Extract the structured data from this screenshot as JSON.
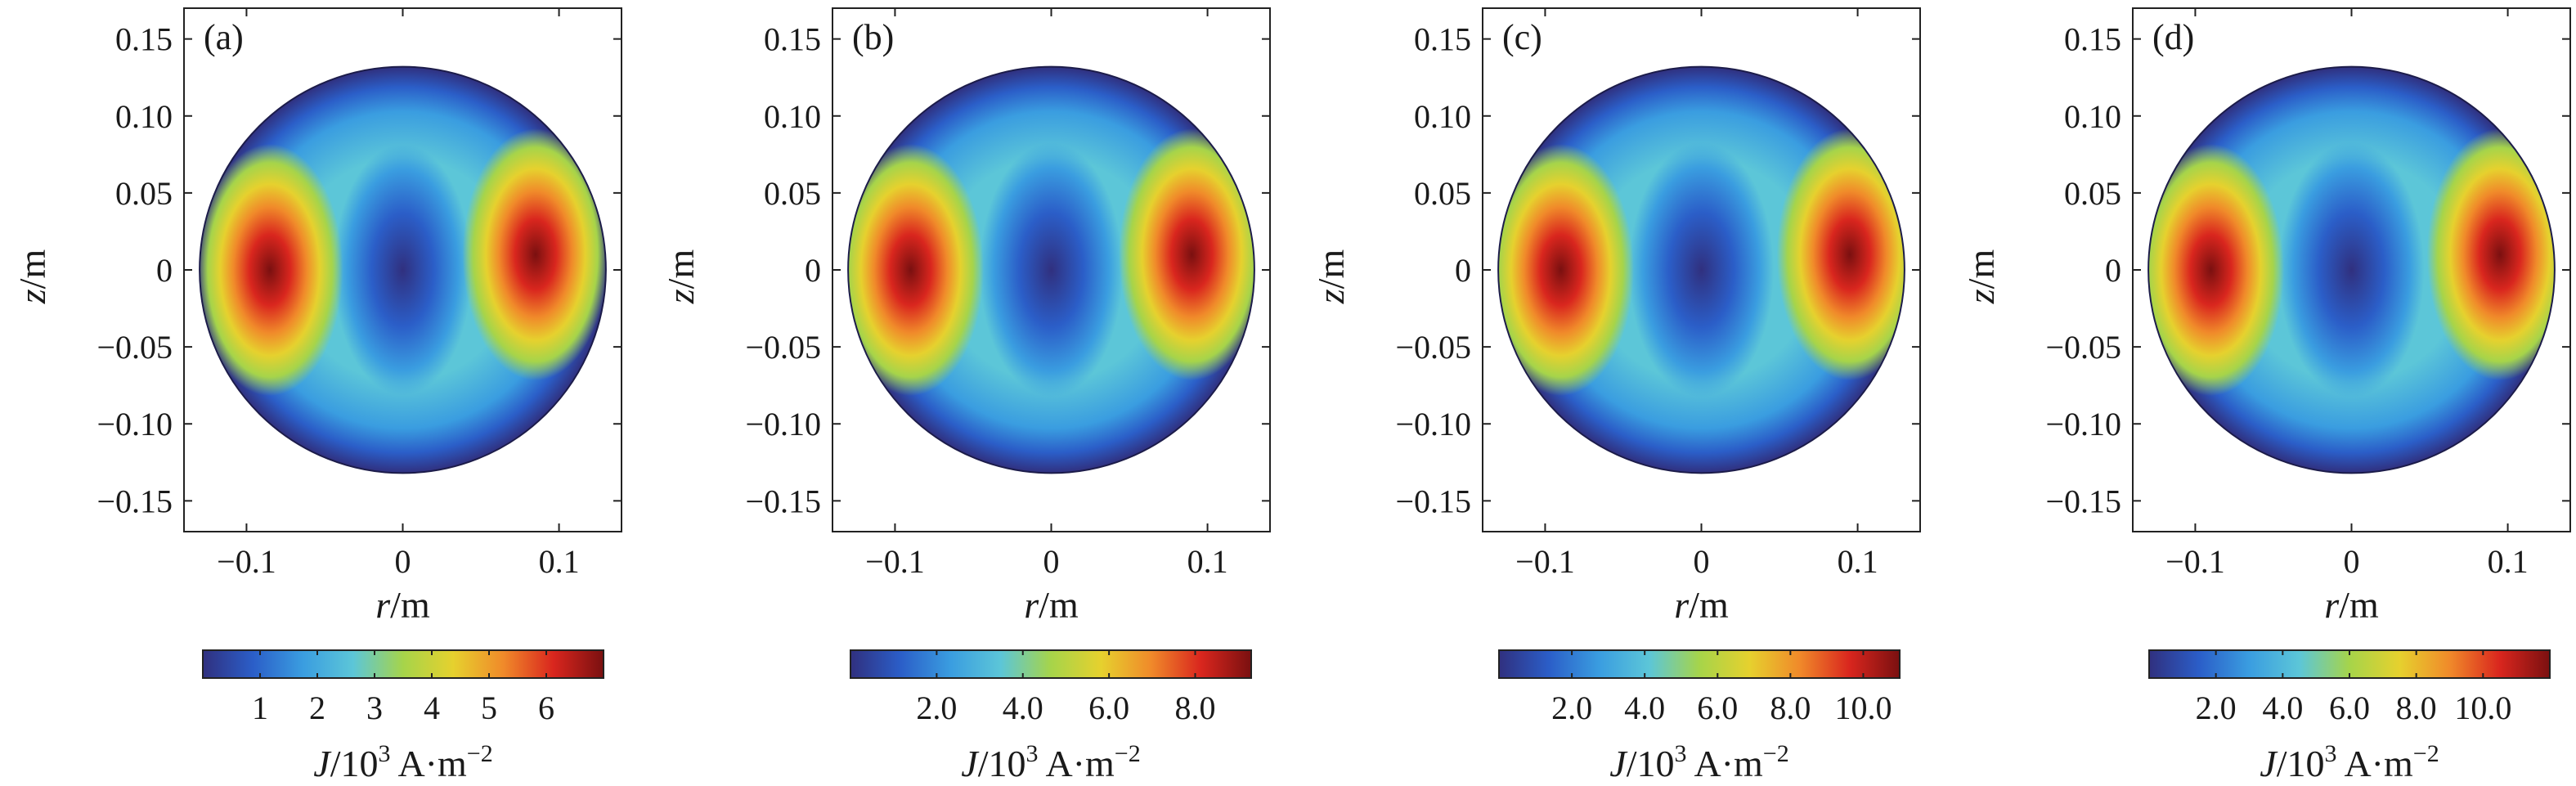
{
  "chart_data": [
    {
      "type": "heatmap",
      "panel_label": "(a)",
      "xlabel": {
        "var": "r",
        "unit": "/m"
      },
      "ylabel": {
        "var": "z",
        "unit": "/m"
      },
      "xlim": [
        -0.14,
        0.14
      ],
      "ylim": [
        -0.17,
        0.17
      ],
      "xticks": [
        -0.1,
        0,
        0.1
      ],
      "xtick_labels": [
        "−0.1",
        "0",
        "0.1"
      ],
      "yticks": [
        0.15,
        0.1,
        0.05,
        0,
        -0.05,
        -0.1,
        -0.15
      ],
      "ytick_labels": [
        "0.15",
        "0.10",
        "0.05",
        "0",
        "−0.05",
        "−0.10",
        "−0.15"
      ],
      "domain": {
        "shape": "circle",
        "center": [
          0,
          0
        ],
        "radius": 0.13
      },
      "hotspots": [
        {
          "r": -0.085,
          "z": 0.0,
          "value": 6.5
        },
        {
          "r": 0.085,
          "z": 0.01,
          "value": 6.5
        }
      ],
      "min_region": {
        "r": 0.0,
        "z": 0.0,
        "value": 1.0
      },
      "colorbar": {
        "range": [
          0,
          7.0
        ],
        "ticks": [
          1,
          2,
          3,
          4,
          5,
          6
        ],
        "tick_labels": [
          "1",
          "2",
          "3",
          "4",
          "5",
          "6"
        ],
        "label": {
          "var": "J",
          "unit": "/10",
          "exp": "3",
          "rest": " A·m",
          "exp2": "−2"
        }
      }
    },
    {
      "type": "heatmap",
      "panel_label": "(b)",
      "xlabel": {
        "var": "r",
        "unit": "/m"
      },
      "ylabel": {
        "var": "z",
        "unit": "/m"
      },
      "xlim": [
        -0.14,
        0.14
      ],
      "ylim": [
        -0.17,
        0.17
      ],
      "xticks": [
        -0.1,
        0,
        0.1
      ],
      "xtick_labels": [
        "−0.1",
        "0",
        "0.1"
      ],
      "yticks": [
        0.15,
        0.1,
        0.05,
        0,
        -0.05,
        -0.1,
        -0.15
      ],
      "ytick_labels": [
        "0.15",
        "0.10",
        "0.05",
        "0",
        "−0.05",
        "−0.10",
        "−0.15"
      ],
      "domain": {
        "shape": "circle",
        "center": [
          0,
          0
        ],
        "radius": 0.13
      },
      "hotspots": [
        {
          "r": -0.09,
          "z": 0.0,
          "value": 8.5
        },
        {
          "r": 0.09,
          "z": 0.01,
          "value": 8.0
        }
      ],
      "min_region": {
        "r": 0.0,
        "z": 0.0,
        "value": 0.5
      },
      "colorbar": {
        "range": [
          0,
          9.3
        ],
        "ticks": [
          2.0,
          4.0,
          6.0,
          8.0
        ],
        "tick_labels": [
          "2.0",
          "4.0",
          "6.0",
          "8.0"
        ],
        "label": {
          "var": "J",
          "unit": "/10",
          "exp": "3",
          "rest": " A·m",
          "exp2": "−2"
        }
      }
    },
    {
      "type": "heatmap",
      "panel_label": "(c)",
      "xlabel": {
        "var": "r",
        "unit": "/m"
      },
      "ylabel": {
        "var": "z",
        "unit": "/m"
      },
      "xlim": [
        -0.14,
        0.14
      ],
      "ylim": [
        -0.17,
        0.17
      ],
      "xticks": [
        -0.1,
        0,
        0.1
      ],
      "xtick_labels": [
        "−0.1",
        "0",
        "0.1"
      ],
      "yticks": [
        0.15,
        0.1,
        0.05,
        0,
        -0.05,
        -0.1,
        -0.15
      ],
      "ytick_labels": [
        "0.15",
        "0.10",
        "0.05",
        "0",
        "−0.05",
        "−0.10",
        "−0.15"
      ],
      "domain": {
        "shape": "circle",
        "center": [
          0,
          0
        ],
        "radius": 0.13
      },
      "hotspots": [
        {
          "r": -0.09,
          "z": 0.0,
          "value": 10.5
        },
        {
          "r": 0.095,
          "z": 0.01,
          "value": 10.5
        }
      ],
      "min_region": {
        "r": 0.0,
        "z": 0.0,
        "value": 0.3
      },
      "colorbar": {
        "range": [
          0,
          11.0
        ],
        "ticks": [
          2.0,
          4.0,
          6.0,
          8.0,
          10.0
        ],
        "tick_labels": [
          "2.0",
          "4.0",
          "6.0",
          "8.0",
          "10.0"
        ],
        "label": {
          "var": "J",
          "unit": "/10",
          "exp": "3",
          "rest": " A·m",
          "exp2": "−2"
        }
      }
    },
    {
      "type": "heatmap",
      "panel_label": "(d)",
      "xlabel": {
        "var": "r",
        "unit": "/m"
      },
      "ylabel": {
        "var": "z",
        "unit": "/m"
      },
      "xlim": [
        -0.14,
        0.14
      ],
      "ylim": [
        -0.17,
        0.17
      ],
      "xticks": [
        -0.1,
        0,
        0.1
      ],
      "xtick_labels": [
        "−0.1",
        "0",
        "0.1"
      ],
      "yticks": [
        0.15,
        0.1,
        0.05,
        0,
        -0.05,
        -0.1,
        -0.15
      ],
      "ytick_labels": [
        "0.15",
        "0.10",
        "0.05",
        "0",
        "−0.05",
        "−0.10",
        "−0.15"
      ],
      "domain": {
        "shape": "circle",
        "center": [
          0,
          0
        ],
        "radius": 0.13
      },
      "hotspots": [
        {
          "r": -0.09,
          "z": 0.0,
          "value": 11.5
        },
        {
          "r": 0.095,
          "z": 0.01,
          "value": 11.5
        }
      ],
      "min_region": {
        "r": 0.0,
        "z": 0.0,
        "value": 0.2
      },
      "colorbar": {
        "range": [
          0,
          12.0
        ],
        "ticks": [
          2.0,
          4.0,
          6.0,
          8.0,
          10.0
        ],
        "tick_labels": [
          "2.0",
          "4.0",
          "6.0",
          "8.0",
          "10.0"
        ],
        "label": {
          "var": "J",
          "unit": "/10",
          "exp": "3",
          "rest": " A·m",
          "exp2": "−2"
        }
      }
    }
  ],
  "colormap": [
    "#30307f",
    "#2b5ec8",
    "#3a9de0",
    "#5cc6d8",
    "#a6d44a",
    "#e6d12e",
    "#f08a2a",
    "#d9261e",
    "#7a1010"
  ]
}
